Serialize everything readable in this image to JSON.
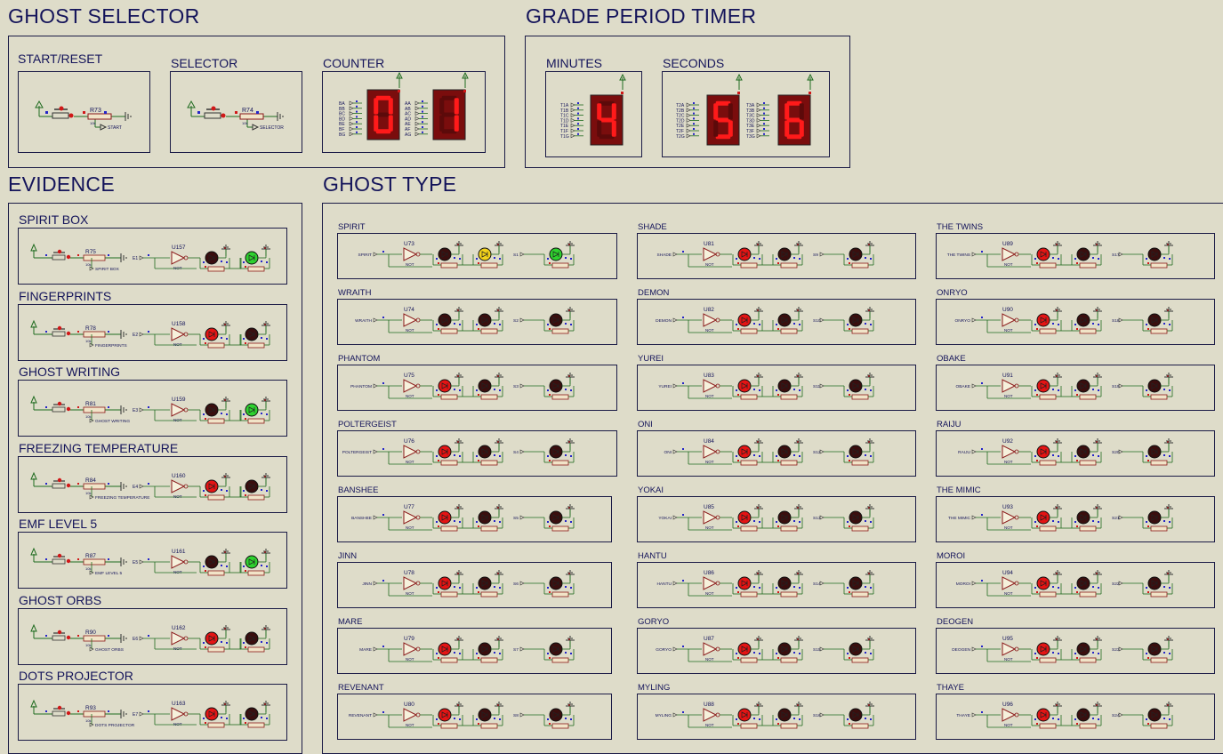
{
  "sections": {
    "ghost_selector": "GHOST SELECTOR",
    "grade_timer": "GRADE PERIOD TIMER",
    "evidence": "EVIDENCE",
    "ghost_type": "GHOST TYPE"
  },
  "selector_panels": {
    "start_reset": {
      "label": "START/RESET",
      "ref": "R73",
      "val": "10k",
      "out": "START"
    },
    "selector": {
      "label": "SELECTOR",
      "ref": "R74",
      "val": "10k",
      "out": "SELECTOR"
    },
    "counter": {
      "label": "COUNTER",
      "pins_left": [
        "BA",
        "BB",
        "BC",
        "BD",
        "BE",
        "BF",
        "BG"
      ],
      "pins_right": [
        "AA",
        "AB",
        "AC",
        "AD",
        "AE",
        "AF",
        "AG"
      ],
      "digits": [
        "0",
        "1"
      ]
    }
  },
  "timer_panels": {
    "minutes": {
      "label": "MINUTES",
      "pins": [
        "T1A",
        "T1B",
        "T1C",
        "T1D",
        "T1E",
        "T1F",
        "T1G"
      ],
      "digit": "4"
    },
    "seconds": {
      "label": "SECONDS",
      "pins_left": [
        "T2A",
        "T2B",
        "T2C",
        "T2D",
        "T2E",
        "T2F",
        "T2G"
      ],
      "pins_right": [
        "T3A",
        "T3B",
        "T3C",
        "T3D",
        "T3E",
        "T3F",
        "T3G"
      ],
      "digits": [
        "5",
        "6"
      ]
    }
  },
  "evidence": [
    {
      "label": "SPIRIT BOX",
      "ref": "R75",
      "val": "10k",
      "net": "SPIRIT BOX",
      "e": "E1",
      "u": "U157",
      "gate": "NOT",
      "led1": "off",
      "led2": "green"
    },
    {
      "label": "FINGERPRINTS",
      "ref": "R78",
      "val": "10k",
      "net": "FINGERPRINTS",
      "e": "E2",
      "u": "U158",
      "gate": "NOT",
      "led1": "red",
      "led2": "off"
    },
    {
      "label": "GHOST WRITING",
      "ref": "R81",
      "val": "10k",
      "net": "GHOST WRITING",
      "e": "E3",
      "u": "U159",
      "gate": "NOT",
      "led1": "off",
      "led2": "green"
    },
    {
      "label": "FREEZING TEMPERATURE",
      "ref": "R84",
      "val": "10k",
      "net": "FREEZING TEMPERATURE",
      "e": "E4",
      "u": "U160",
      "gate": "NOT",
      "led1": "red",
      "led2": "off"
    },
    {
      "label": "EMF LEVEL 5",
      "ref": "R87",
      "val": "10k",
      "net": "EMF LEVEL 5",
      "e": "E5",
      "u": "U161",
      "gate": "NOT",
      "led1": "off",
      "led2": "green"
    },
    {
      "label": "GHOST ORBS",
      "ref": "R90",
      "val": "10k",
      "net": "GHOST ORBS",
      "e": "E6",
      "u": "U162",
      "gate": "NOT",
      "led1": "red",
      "led2": "off"
    },
    {
      "label": "DOTS PROJECTOR",
      "ref": "R93",
      "val": "10k",
      "net": "DOTS PROJECTOR",
      "e": "E7",
      "u": "U163",
      "gate": "NOT",
      "led1": "red",
      "led2": "off"
    }
  ],
  "ghosts": [
    [
      {
        "label": "SPIRIT",
        "u": "U73",
        "s": "S1",
        "leds": [
          "off",
          "yellow",
          "green"
        ]
      },
      {
        "label": "WRAITH",
        "u": "U74",
        "s": "S2",
        "leds": [
          "off",
          "off",
          "off"
        ]
      },
      {
        "label": "PHANTOM",
        "u": "U75",
        "s": "S3",
        "leds": [
          "red",
          "off",
          "off"
        ]
      },
      {
        "label": "POLTERGEIST",
        "u": "U76",
        "s": "S4",
        "leds": [
          "red",
          "off",
          "off"
        ]
      },
      {
        "label": "BANSHEE",
        "u": "U77",
        "s": "S5",
        "leds": [
          "red",
          "off",
          "off"
        ]
      },
      {
        "label": "JINN",
        "u": "U78",
        "s": "S6",
        "leds": [
          "red",
          "off",
          "off"
        ]
      },
      {
        "label": "MARE",
        "u": "U79",
        "s": "S7",
        "leds": [
          "red",
          "off",
          "off"
        ]
      },
      {
        "label": "REVENANT",
        "u": "U80",
        "s": "S8",
        "leds": [
          "red",
          "off",
          "off"
        ]
      }
    ],
    [
      {
        "label": "SHADE",
        "u": "U81",
        "s": "S9",
        "leds": [
          "red",
          "off",
          "off"
        ]
      },
      {
        "label": "DEMON",
        "u": "U82",
        "s": "S10",
        "leds": [
          "red",
          "off",
          "off"
        ]
      },
      {
        "label": "YUREI",
        "u": "U83",
        "s": "S11",
        "leds": [
          "red",
          "off",
          "off"
        ]
      },
      {
        "label": "ONI",
        "u": "U84",
        "s": "S12",
        "leds": [
          "red",
          "off",
          "off"
        ]
      },
      {
        "label": "YOKAI",
        "u": "U85",
        "s": "S13",
        "leds": [
          "red",
          "off",
          "off"
        ]
      },
      {
        "label": "HANTU",
        "u": "U86",
        "s": "S14",
        "leds": [
          "red",
          "off",
          "off"
        ]
      },
      {
        "label": "GORYO",
        "u": "U87",
        "s": "S15",
        "leds": [
          "red",
          "off",
          "off"
        ]
      },
      {
        "label": "MYLING",
        "u": "U88",
        "s": "S16",
        "leds": [
          "red",
          "off",
          "off"
        ]
      }
    ],
    [
      {
        "label": "THE TWINS",
        "u": "U89",
        "s": "S17",
        "leds": [
          "red",
          "off",
          "off"
        ]
      },
      {
        "label": "ONRYO",
        "u": "U90",
        "s": "S18",
        "leds": [
          "red",
          "off",
          "off"
        ]
      },
      {
        "label": "OBAKE",
        "u": "U91",
        "s": "S19",
        "leds": [
          "red",
          "off",
          "off"
        ]
      },
      {
        "label": "RAIJU",
        "u": "U92",
        "s": "S20",
        "leds": [
          "red",
          "off",
          "off"
        ]
      },
      {
        "label": "THE MIMIC",
        "u": "U93",
        "s": "S21",
        "leds": [
          "red",
          "off",
          "off"
        ]
      },
      {
        "label": "MOROI",
        "u": "U94",
        "s": "S22",
        "leds": [
          "red",
          "off",
          "off"
        ]
      },
      {
        "label": "DEOGEN",
        "u": "U95",
        "s": "S23",
        "leds": [
          "red",
          "off",
          "off"
        ]
      },
      {
        "label": "THAYE",
        "u": "U96",
        "s": "S24",
        "leds": [
          "red",
          "off",
          "off"
        ]
      }
    ]
  ],
  "colors": {
    "wire": "#1f6b1f",
    "blue": "#2424c8",
    "red_pin": "#d01818",
    "led_red": "#e41414",
    "led_off": "#3a0e0e",
    "led_green": "#2ed12e",
    "led_yellow": "#f2d21b",
    "seg_on": "#ff1a1a",
    "seg_bg": "#7a0d0d"
  }
}
